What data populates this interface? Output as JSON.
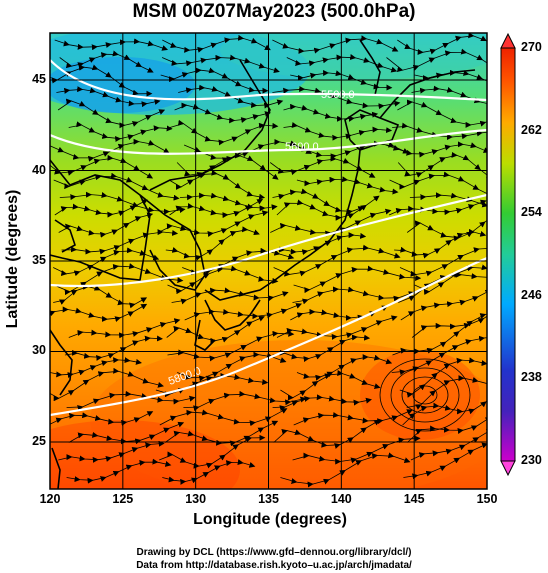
{
  "title": "MSM 00Z07May2023 (500.0hPa)",
  "x_axis": {
    "label": "Longitude (degrees)",
    "range": [
      120,
      150
    ],
    "ticks": [
      "120",
      "125",
      "130",
      "135",
      "140",
      "145",
      "150"
    ]
  },
  "y_axis": {
    "label": "Latitude  (degrees)",
    "range": [
      22.4,
      47.6
    ],
    "ticks": [
      "25",
      "30",
      "35",
      "40",
      "45"
    ]
  },
  "colorbar": {
    "range": [
      230,
      270
    ],
    "ticks": [
      "230",
      "238",
      "246",
      "254",
      "262",
      "270"
    ],
    "colors": [
      "#cc00cc",
      "#2222cc",
      "#00aaff",
      "#22cc99",
      "#33cc33",
      "#bbdd00",
      "#ffaa00",
      "#ff5500",
      "#ee2200"
    ]
  },
  "height_contours": [
    {
      "label": "5500.0"
    },
    {
      "label": "5600.0"
    },
    {
      "label": "5800.0"
    }
  ],
  "credits": [
    "Drawing by DCL (https://www.gfd–dennou.org/library/dcl/)",
    "Data from http://database.rish.kyoto–u.ac.jp/arch/jmadata/"
  ]
}
